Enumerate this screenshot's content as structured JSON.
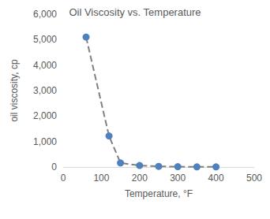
{
  "chart_data": {
    "type": "line",
    "title": "Oil Viscosity vs. Temperature",
    "x_label": "Temperature, °F",
    "y_label": "oil viscosity, cp",
    "x": [
      60,
      120,
      150,
      200,
      250,
      300,
      350,
      400
    ],
    "values": [
      5100,
      1220,
      160,
      60,
      25,
      12,
      7,
      4
    ],
    "color": "#4f81bd",
    "marker": "circle",
    "line_style": "dashed",
    "xlim": [
      0,
      500
    ],
    "xticks": [
      0,
      100,
      200,
      300,
      400,
      500
    ],
    "ylim": [
      0,
      6000
    ],
    "yticks": [
      0,
      {
        "value": 1000,
        "label": "1,000"
      },
      {
        "value": 2000,
        "label": "2,000"
      },
      {
        "value": 3000,
        "label": "3,000"
      },
      {
        "value": 4000,
        "label": "4,000"
      },
      {
        "value": 5000,
        "label": "5,000"
      },
      {
        "value": 6000,
        "label": "6,000"
      }
    ],
    "grid": false
  }
}
